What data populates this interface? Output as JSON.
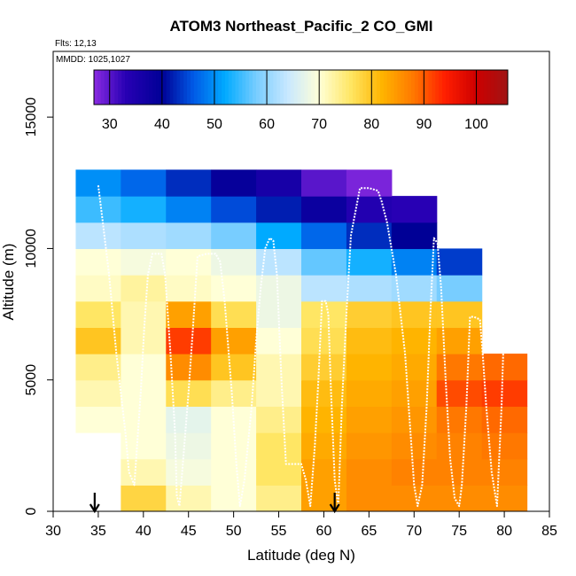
{
  "chart_data": {
    "type": "heatmap",
    "title": "ATOM3 Northeast_Pacific_2 CO_GMI",
    "subtitle_flights": "Flts: 12,13",
    "subtitle_dates": "MMDD: 1025,1027",
    "xlabel": "Latitude (deg N)",
    "ylabel": "Altitude (m)",
    "xlim": [
      30,
      85
    ],
    "ylim": [
      0,
      17500
    ],
    "xticks": [
      30,
      35,
      40,
      45,
      50,
      55,
      60,
      65,
      70,
      75,
      80,
      85
    ],
    "yticks": [
      0,
      5000,
      10000,
      15000
    ],
    "colorbar": {
      "range": [
        27,
        106
      ],
      "ticks": [
        30,
        40,
        50,
        60,
        70,
        80,
        90,
        100
      ],
      "placement": "top-inside"
    },
    "markers": [
      {
        "type": "arrow-down",
        "lat": 34.6
      },
      {
        "type": "arrow-down",
        "lat": 61.2
      }
    ],
    "heatmap_grid": {
      "lat": [
        35,
        40,
        45,
        50,
        55,
        60,
        65,
        70,
        75,
        80
      ],
      "alt": [
        500,
        1500,
        2500,
        3500,
        4500,
        5500,
        6500,
        7500,
        8500,
        9500,
        10500,
        11500,
        12500
      ],
      "values": [
        [
          null,
          78,
          72,
          70,
          74,
          84,
          86,
          86,
          86,
          86
        ],
        [
          null,
          72,
          69,
          70,
          76,
          84,
          86,
          87,
          87,
          87
        ],
        [
          null,
          70,
          68,
          70,
          76,
          83,
          85,
          86,
          87,
          88
        ],
        [
          70,
          70,
          67,
          70,
          74,
          82,
          84,
          85,
          88,
          89
        ],
        [
          72,
          70,
          77,
          74,
          72,
          81,
          83,
          84,
          91,
          92
        ],
        [
          74,
          70,
          86,
          80,
          72,
          79,
          82,
          83,
          88,
          89
        ],
        [
          80,
          72,
          92,
          84,
          70,
          77,
          81,
          82,
          84,
          null
        ],
        [
          76,
          72,
          84,
          77,
          68,
          76,
          79,
          80,
          80,
          null
        ],
        [
          71,
          73,
          71,
          70,
          68,
          63,
          62,
          61,
          58,
          null
        ],
        [
          70,
          69,
          70,
          68,
          63,
          57,
          53,
          49,
          44,
          null
        ],
        [
          63,
          62,
          61,
          58,
          52,
          47,
          43,
          40,
          null,
          null
        ],
        [
          55,
          53,
          49,
          45,
          42,
          38,
          34,
          33,
          null,
          null
        ],
        [
          50,
          47,
          43,
          39,
          36,
          30,
          28,
          null,
          null,
          null
        ]
      ]
    },
    "flight_track": {
      "lat": [
        35.0,
        35.5,
        36.2,
        37.0,
        38.0,
        38.4,
        39.0,
        39.3,
        39.7,
        40.1,
        40.5,
        41.0,
        41.5,
        42.0,
        42.4,
        43.0,
        43.5,
        43.7,
        44.0,
        44.3,
        45.0,
        45.5,
        46.0,
        47.0,
        48.0,
        48.5,
        49.0,
        49.8,
        50.3,
        50.7,
        51.2,
        52.0,
        52.5,
        53.0,
        53.5,
        54.0,
        54.4,
        54.8,
        55.3,
        55.8,
        56.5,
        57.5,
        58.0,
        58.5,
        59.0,
        59.4,
        59.8,
        60.2,
        60.5,
        60.8,
        61.2,
        61.6,
        62.0,
        62.5,
        63.0,
        64.0,
        65.0,
        66.0,
        66.4,
        67.0,
        68.0,
        69.0,
        70.0,
        70.4,
        70.9,
        71.4,
        71.8,
        72.2,
        72.6,
        73.0,
        73.5,
        74.0,
        74.5,
        75.0,
        75.3,
        75.8,
        76.2,
        76.6,
        77.3,
        77.6,
        78.0,
        78.6,
        79.2,
        79.7,
        80.0
      ],
      "alt": [
        12400,
        11000,
        9000,
        6000,
        3000,
        1500,
        1000,
        2500,
        4500,
        7000,
        9000,
        9800,
        9800,
        9800,
        9000,
        6000,
        3000,
        600,
        200,
        1500,
        4500,
        7000,
        9700,
        9800,
        9800,
        9500,
        8000,
        4500,
        1800,
        200,
        1200,
        4000,
        6500,
        8500,
        10000,
        10400,
        10300,
        9000,
        5000,
        1800,
        1800,
        1800,
        1200,
        200,
        2500,
        5000,
        8000,
        8000,
        7500,
        4500,
        1200,
        200,
        4000,
        7500,
        10500,
        12300,
        12300,
        12200,
        11800,
        11000,
        9000,
        6000,
        1000,
        200,
        1000,
        4000,
        7500,
        10400,
        10200,
        8500,
        5000,
        2000,
        500,
        200,
        1000,
        4000,
        7400,
        7400,
        7300,
        6000,
        4000,
        1500,
        200,
        4000,
        7400
      ]
    },
    "grid": false,
    "legend": "none"
  }
}
